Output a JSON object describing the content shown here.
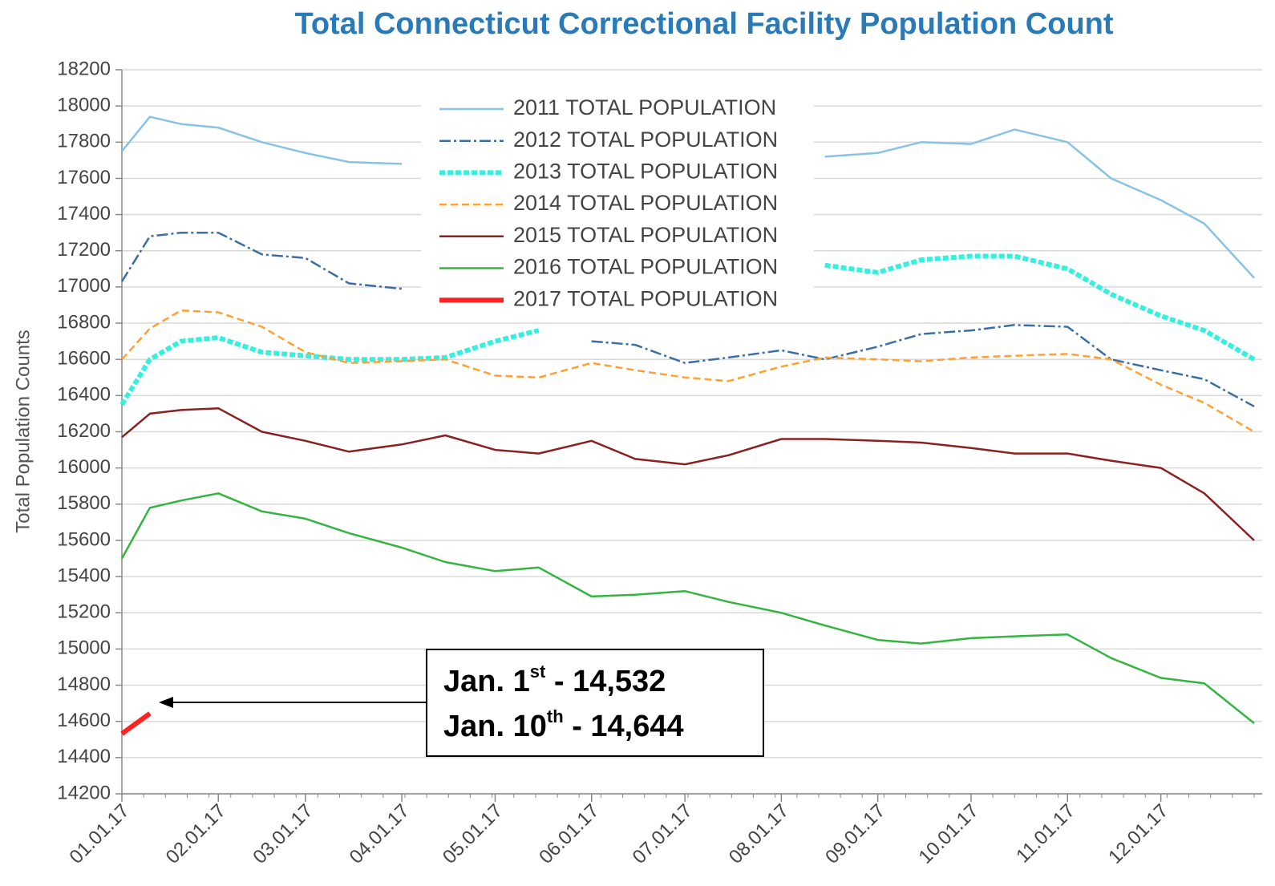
{
  "chart_data": {
    "type": "line",
    "title": "Total Connecticut Correctional Facility Population Count",
    "ylabel": "Total Population Counts",
    "ylim": [
      14200,
      18200
    ],
    "yticks": [
      14200,
      14400,
      14600,
      14800,
      15000,
      15200,
      15400,
      15600,
      15800,
      16000,
      16200,
      16400,
      16600,
      16800,
      17000,
      17200,
      17400,
      17600,
      17800,
      18000,
      18200
    ],
    "xticks": [
      "01.01.17",
      "02.01.17",
      "03.01.17",
      "04.01.17",
      "05.01.17",
      "06.01.17",
      "07.01.17",
      "08.01.17",
      "09.01.17",
      "10.01.17",
      "11.01.17",
      "12.01.17"
    ],
    "xlim": [
      "01.01.17",
      "12.31.17"
    ],
    "x": [
      "01.01.17",
      "01.10.17",
      "01.20.17",
      "02.01.17",
      "02.15.17",
      "03.01.17",
      "03.15.17",
      "04.01.17",
      "04.15.17",
      "05.01.17",
      "05.15.17",
      "06.01.17",
      "06.15.17",
      "07.01.17",
      "07.15.17",
      "08.01.17",
      "08.15.17",
      "09.01.17",
      "09.15.17",
      "10.01.17",
      "10.15.17",
      "11.01.17",
      "11.15.17",
      "12.01.17",
      "12.15.17",
      "12.31.17"
    ],
    "grid": true,
    "series": [
      {
        "name": "2011 TOTAL POPULATION",
        "color": "#87c3e4",
        "dash": "solid",
        "width": 2.5,
        "values": [
          17750,
          17940,
          17900,
          17880,
          17800,
          17740,
          17690,
          17680,
          null,
          null,
          null,
          null,
          null,
          null,
          null,
          null,
          17720,
          17740,
          17800,
          17790,
          17870,
          17800,
          17600,
          17480,
          17350,
          17050
        ]
      },
      {
        "name": "2012 TOTAL POPULATION",
        "color": "#3a6ea5",
        "dash": "dashdot",
        "width": 2.5,
        "values": [
          17030,
          17280,
          17300,
          17300,
          17180,
          17160,
          17020,
          16990,
          null,
          null,
          null,
          16700,
          16680,
          16580,
          16610,
          16650,
          16600,
          16670,
          16740,
          16760,
          16790,
          16780,
          16600,
          16540,
          16490,
          16340
        ]
      },
      {
        "name": "2013 TOTAL POPULATION",
        "color": "#33f0e0",
        "dash": "dotted",
        "width": 6,
        "values": [
          16350,
          16600,
          16700,
          16720,
          16640,
          16620,
          16600,
          16600,
          16610,
          16700,
          16760,
          null,
          null,
          null,
          null,
          null,
          17120,
          17080,
          17150,
          17170,
          17170,
          17100,
          16960,
          16840,
          16760,
          16600
        ]
      },
      {
        "name": "2014 TOTAL POPULATION",
        "color": "#ffa030",
        "dash": "dashed",
        "width": 2.5,
        "values": [
          16600,
          16770,
          16870,
          16860,
          16780,
          16640,
          16580,
          16590,
          16600,
          16510,
          16500,
          16580,
          16540,
          16500,
          16480,
          16560,
          16610,
          16600,
          16590,
          16610,
          16620,
          16630,
          16600,
          16460,
          16360,
          16200
        ]
      },
      {
        "name": "2015 TOTAL POPULATION",
        "color": "#8b2020",
        "dash": "solid",
        "width": 2.5,
        "values": [
          16170,
          16300,
          16320,
          16330,
          16200,
          16150,
          16090,
          16130,
          16180,
          16100,
          16080,
          16150,
          16050,
          16020,
          16070,
          16160,
          16160,
          16150,
          16140,
          16110,
          16080,
          16080,
          16040,
          16000,
          15860,
          15600
        ]
      },
      {
        "name": "2016 TOTAL POPULATION",
        "color": "#33b540",
        "dash": "solid",
        "width": 2.5,
        "values": [
          15500,
          15780,
          15820,
          15860,
          15760,
          15720,
          15640,
          15560,
          15480,
          15430,
          15450,
          15290,
          15300,
          15320,
          15260,
          15200,
          15130,
          15050,
          15030,
          15060,
          15070,
          15080,
          14950,
          14840,
          14810,
          14590
        ]
      },
      {
        "name": "2017 TOTAL POPULATION",
        "color": "#ff2020",
        "dash": "solid",
        "width": 6,
        "values": [
          14532,
          14644,
          null,
          null,
          null,
          null,
          null,
          null,
          null,
          null,
          null,
          null,
          null,
          null,
          null,
          null,
          null,
          null,
          null,
          null,
          null,
          null,
          null,
          null,
          null,
          null
        ]
      }
    ],
    "annotation": {
      "lines": [
        [
          "Jan. 1",
          "st",
          " - 14,532"
        ],
        [
          "Jan. 10",
          "th",
          " - 14,644"
        ]
      ]
    }
  }
}
